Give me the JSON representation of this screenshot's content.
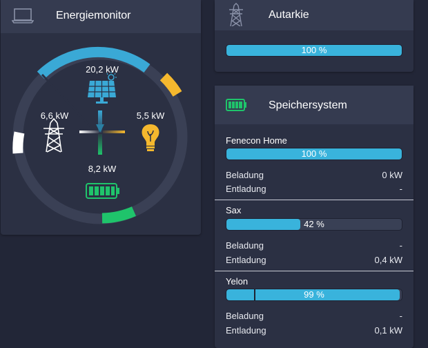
{
  "energiemonitor": {
    "title": "Energiemonitor",
    "icon": "laptop-icon",
    "production": "20,2 kW",
    "grid": "6,6 kW",
    "consumption": "5,5 kW",
    "storage": "8,2 kW"
  },
  "autarkie": {
    "title": "Autarkie",
    "icon": "transmission-tower-icon",
    "percent": 100,
    "label": "100 %"
  },
  "speichersystem": {
    "title": "Speichersystem",
    "icon": "battery-icon",
    "systems": [
      {
        "name": "Fenecon Home",
        "percent": 100,
        "label": "100 %",
        "beladung_label": "Beladung",
        "beladung": "0 kW",
        "entladung_label": "Entladung",
        "entladung": "-"
      },
      {
        "name": "Sax",
        "percent": 42,
        "label": "42 %",
        "beladung_label": "Beladung",
        "beladung": "-",
        "entladung_label": "Entladung",
        "entladung": "0,4 kW"
      },
      {
        "name": "Yelon",
        "percent": 99,
        "label": "99 %",
        "beladung_label": "Beladung",
        "beladung": "-",
        "entladung_label": "Entladung",
        "entladung": "0,1 kW"
      }
    ]
  },
  "colors": {
    "background": "#222637",
    "card": "#2b3043",
    "header": "#353b50",
    "bar_fill": "#39b3dc",
    "production": "#3aa9d6",
    "consumption": "#f5b82e",
    "storage": "#1fc46b",
    "grid": "#ffffff"
  }
}
